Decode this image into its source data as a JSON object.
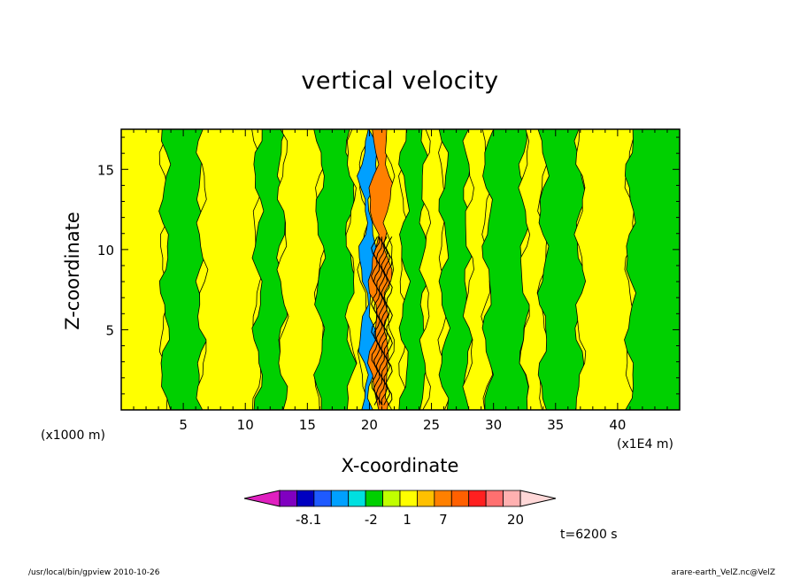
{
  "chart_data": {
    "type": "heatmap",
    "title": "vertical velocity",
    "xlabel": "X-coordinate",
    "ylabel": "Z-coordinate",
    "x_unit_left": "(x1000 m)",
    "x_unit_right": "(x1E4 m)",
    "xlim": [
      0,
      45
    ],
    "ylim": [
      0,
      17.5
    ],
    "x_ticks": [
      5,
      10,
      15,
      20,
      25,
      30,
      35,
      40
    ],
    "y_ticks": [
      5,
      10,
      15
    ],
    "colorbar": {
      "colors": [
        "#e020c0",
        "#8000c0",
        "#0000c0",
        "#1e5aff",
        "#00a0ff",
        "#00e0e0",
        "#00d000",
        "#c0ff00",
        "#ffff00",
        "#ffc000",
        "#ff8000",
        "#ff6000",
        "#ff2020",
        "#ff7070",
        "#ffb0b0",
        "#ffd8d8"
      ],
      "labels": [
        "-8.1",
        "-2",
        "1",
        "7",
        "20"
      ],
      "label_values": [
        -8.1,
        -2,
        1,
        7,
        20
      ]
    },
    "bands": [
      {
        "x0": 0,
        "x1": 3.5,
        "color": "#ffff00"
      },
      {
        "x0": 3.5,
        "x1": 6.5,
        "color": "#00d000"
      },
      {
        "x0": 6.5,
        "x1": 11,
        "color": "#ffff00"
      },
      {
        "x0": 11,
        "x1": 13,
        "color": "#00d000"
      },
      {
        "x0": 13,
        "x1": 16,
        "color": "#ffff00"
      },
      {
        "x0": 16,
        "x1": 18.5,
        "color": "#00d000"
      },
      {
        "x0": 18.5,
        "x1": 19.5,
        "color": "#ffff00"
      },
      {
        "x0": 19.5,
        "x1": 20.3,
        "color": "#00a0ff"
      },
      {
        "x0": 20.3,
        "x1": 21.6,
        "color": "#ff8000"
      },
      {
        "x0": 21.6,
        "x1": 22.8,
        "color": "#ffff00"
      },
      {
        "x0": 22.8,
        "x1": 24.5,
        "color": "#00d000"
      },
      {
        "x0": 24.5,
        "x1": 26,
        "color": "#ffff00"
      },
      {
        "x0": 26,
        "x1": 28,
        "color": "#00d000"
      },
      {
        "x0": 28,
        "x1": 29.5,
        "color": "#ffff00"
      },
      {
        "x0": 29.5,
        "x1": 32.5,
        "color": "#00d000"
      },
      {
        "x0": 32.5,
        "x1": 34,
        "color": "#ffff00"
      },
      {
        "x0": 34,
        "x1": 37,
        "color": "#00d000"
      },
      {
        "x0": 37,
        "x1": 41,
        "color": "#ffff00"
      },
      {
        "x0": 41,
        "x1": 45,
        "color": "#00d000"
      }
    ],
    "grid": false
  },
  "annotations": {
    "time": "t=6200 s",
    "footer_left": "/usr/local/bin/gpview   2010-10-26",
    "footer_right": "arare-earth_VelZ.nc@VelZ"
  }
}
